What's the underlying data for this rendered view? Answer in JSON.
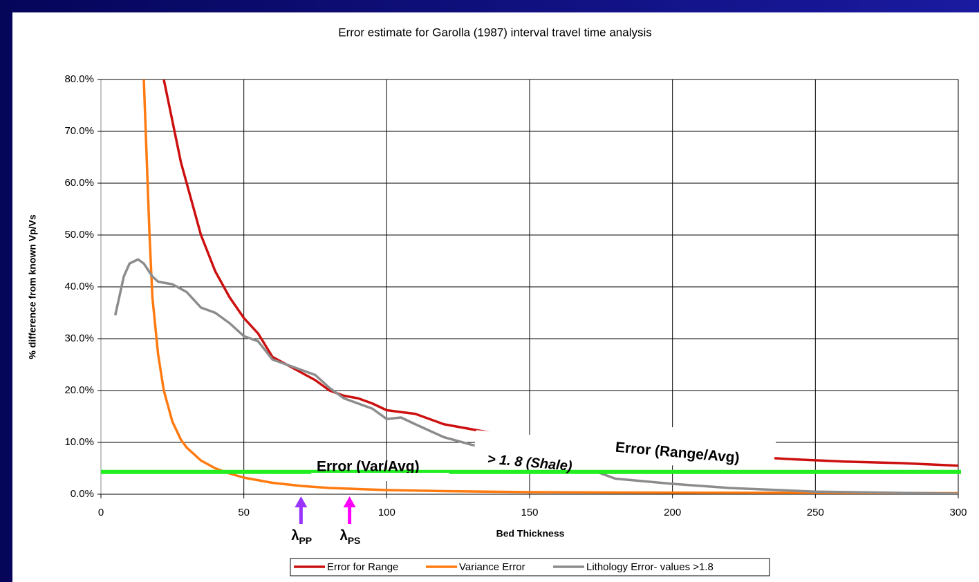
{
  "chart_data": {
    "type": "line",
    "title": "Error estimate for Garolla (1987) interval travel time analysis",
    "x_label": "Bed Thickness",
    "y_label": "% difference from known Vp/Vs",
    "xlim": [
      0,
      300
    ],
    "xticks": [
      0,
      50,
      100,
      150,
      200,
      250,
      300
    ],
    "ylim": [
      0,
      80
    ],
    "yticks": [
      {
        "value": 0,
        "label": "0.0%"
      },
      {
        "value": 10,
        "label": "10.0%"
      },
      {
        "value": 20,
        "label": "20.0%"
      },
      {
        "value": 30,
        "label": "30.0%"
      },
      {
        "value": 40,
        "label": "40.0%"
      },
      {
        "value": 50,
        "label": "50.0%"
      },
      {
        "value": 60,
        "label": "60.0%"
      },
      {
        "value": 70,
        "label": "70.0%"
      },
      {
        "value": 80,
        "label": "80.0%"
      }
    ],
    "grid": true,
    "series": [
      {
        "name": "Error for Range",
        "color": "#cc1010",
        "x": [
          22,
          25,
          28,
          30,
          35,
          40,
          45,
          50,
          55,
          60,
          65,
          70,
          75,
          80,
          85,
          90,
          95,
          100,
          110,
          120,
          130,
          140,
          150,
          160,
          170,
          180,
          190,
          200,
          220,
          240,
          260,
          280,
          300
        ],
        "values": [
          80,
          72,
          64,
          60,
          50,
          43,
          38,
          34,
          31,
          26.5,
          25,
          23.5,
          22,
          20,
          19,
          18.5,
          17.5,
          16.2,
          15.5,
          13.5,
          12.5,
          11.5,
          11,
          10.5,
          9.8,
          9.3,
          8.8,
          8.3,
          7.5,
          6.8,
          6.3,
          6,
          5.5
        ]
      },
      {
        "name": "Variance Error",
        "color": "#ff7a10",
        "x": [
          15,
          16,
          17,
          18,
          20,
          22,
          25,
          28,
          30,
          35,
          40,
          45,
          50,
          60,
          70,
          80,
          90,
          100,
          120,
          150,
          200,
          300
        ],
        "values": [
          80,
          65,
          50,
          38,
          27,
          20,
          14,
          10.5,
          9,
          6.5,
          5,
          4,
          3.2,
          2.2,
          1.6,
          1.2,
          1,
          0.8,
          0.6,
          0.4,
          0.3,
          0.2
        ]
      },
      {
        "name": "Lithology Error- values >1.8",
        "color": "#8c8c8c",
        "x": [
          5,
          8,
          10,
          13,
          15,
          18,
          20,
          25,
          30,
          35,
          40,
          45,
          50,
          55,
          60,
          65,
          70,
          75,
          80,
          85,
          90,
          95,
          100,
          105,
          110,
          120,
          130,
          140,
          150,
          170,
          180,
          190,
          200,
          220,
          250,
          300
        ],
        "values": [
          34.5,
          42,
          44.5,
          45.3,
          44.5,
          42,
          41,
          40.5,
          39,
          36,
          35,
          33,
          30.5,
          29.5,
          26,
          25,
          24,
          23,
          20.5,
          18.5,
          17.5,
          16.5,
          14.5,
          14.8,
          13.5,
          11,
          9.5,
          8.5,
          7.5,
          5,
          3,
          2.5,
          2,
          1.2,
          0.5,
          0.1
        ]
      }
    ],
    "reference_line": {
      "value": 4.3,
      "color": "#22ee22"
    },
    "annotations": [
      {
        "text": "Error (Var/Avg)",
        "color": "#ff7a10"
      },
      {
        "text": "> 1. 8 (Shale)",
        "color": "#8c8c8c"
      },
      {
        "text": "Error (Range/Avg)",
        "color": "#dd0000"
      }
    ],
    "markers": [
      {
        "symbol": "λ",
        "subscript": "PP",
        "x": 70,
        "color": "#9933ff"
      },
      {
        "symbol": "λ",
        "subscript": "PS",
        "x": 87,
        "color": "#ff00ff"
      }
    ]
  }
}
